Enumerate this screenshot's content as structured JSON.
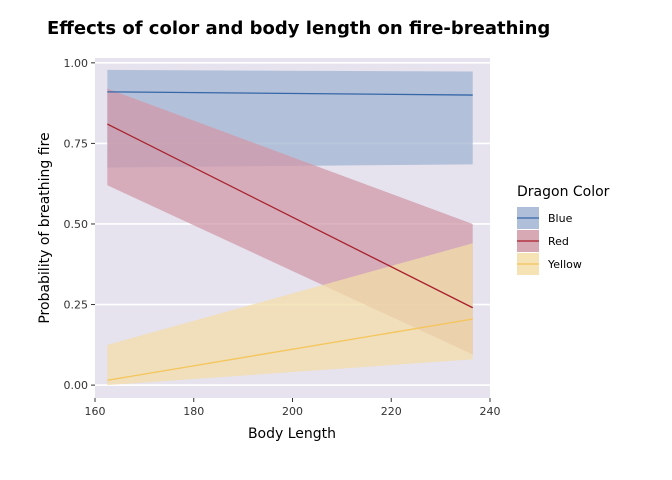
{
  "chart_data": {
    "type": "line",
    "title": "Effects of color and body length on fire-breathing",
    "xlabel": "Body Length",
    "ylabel": "Probability of breathing fire",
    "xlim": [
      160,
      240
    ],
    "ylim": [
      -0.04,
      1.015
    ],
    "x_ticks": [
      160,
      180,
      200,
      220,
      240
    ],
    "x_tick_labels": [
      "160",
      "180",
      "200",
      "220",
      "240"
    ],
    "y_ticks": [
      0,
      0.25,
      0.5,
      0.75,
      1.0
    ],
    "y_tick_labels": [
      "0.00",
      "0.25",
      "0.50",
      "0.75",
      "1.00"
    ],
    "grid": true,
    "background": "#E6E3EF",
    "legend": {
      "title": "Dragon Color",
      "position": "right"
    },
    "series": [
      {
        "name": "Blue",
        "color": "#3566A8",
        "ribbon_color": "#A2B4D2",
        "x": [
          162.5,
          236.5
        ],
        "y": [
          0.91,
          0.9
        ],
        "lower": [
          0.675,
          0.685
        ],
        "upper": [
          0.978,
          0.973
        ]
      },
      {
        "name": "Red",
        "color": "#A8202C",
        "ribbon_color": "#D09AA8",
        "x": [
          162.5,
          236.5
        ],
        "y": [
          0.81,
          0.24
        ],
        "lower": [
          0.62,
          0.095
        ],
        "upper": [
          0.92,
          0.5
        ]
      },
      {
        "name": "Yellow",
        "color": "#F4C55A",
        "ribbon_color": "#F3DDA8",
        "x": [
          162.5,
          236.5
        ],
        "y": [
          0.015,
          0.205
        ],
        "lower": [
          0.0,
          0.08
        ],
        "upper": [
          0.125,
          0.44
        ]
      }
    ]
  }
}
